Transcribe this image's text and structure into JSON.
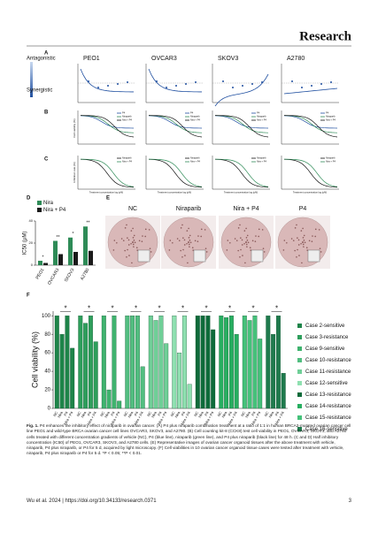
{
  "header": {
    "journal": "Research"
  },
  "figure": {
    "panel_labels": [
      "A",
      "B",
      "C",
      "D",
      "E",
      "F"
    ],
    "panel_a": {
      "legend_top": "Antagonistic",
      "legend_bottom": "Synergistic",
      "cell_lines": [
        "PEO1",
        "OVCAR3",
        "SKOV3",
        "A2780"
      ]
    },
    "panel_b": {
      "y_label": "Cell viability (%)",
      "legend": [
        "P4",
        "Niraparib",
        "Nira + P4"
      ]
    },
    "panel_c": {
      "y_label": "Inhibition rate (%)",
      "x_label": "Treatment concentration log (μM)",
      "legend": [
        "Niraparib",
        "Nira + P4"
      ]
    },
    "panel_e": {
      "labels": [
        "NC",
        "Niraparib",
        "Nira + P4",
        "P4"
      ]
    }
  },
  "chart_data": [
    {
      "type": "bar",
      "y_label": "IC50 (μM)",
      "categories": [
        "PEO1",
        "OVCAR3",
        "SKOV3",
        "A2780"
      ],
      "series": [
        {
          "name": "Nira",
          "color": "#2e8b57",
          "values": [
            4,
            22,
            25,
            35
          ]
        },
        {
          "name": "Nira + P4",
          "color": "#1a1a1a",
          "values": [
            2,
            10,
            12,
            13
          ]
        }
      ],
      "annotations": [
        "*",
        "**",
        "*",
        "**"
      ],
      "ylim": [
        0,
        40
      ],
      "yticks": [
        0,
        20,
        40
      ]
    },
    {
      "type": "bar",
      "y_label": "Cell viability (%)",
      "categories": [
        "NC",
        "Nira",
        "P4",
        "Nira + P4"
      ],
      "series": [
        {
          "name": "Case 2-sensitive",
          "color": "#1e8449",
          "values": [
            100,
            80,
            100,
            65
          ]
        },
        {
          "name": "Case 3-resistance",
          "color": "#2e9e5b",
          "values": [
            100,
            92,
            100,
            72
          ]
        },
        {
          "name": "Case 9-sensitive",
          "color": "#3fb36e",
          "values": [
            100,
            20,
            100,
            8
          ]
        },
        {
          "name": "Case 10-resistance",
          "color": "#52be80",
          "values": [
            100,
            100,
            100,
            45
          ]
        },
        {
          "name": "Case 11-resistance",
          "color": "#6fcf97",
          "values": [
            100,
            95,
            100,
            70
          ]
        },
        {
          "name": "Case 12-sensitive",
          "color": "#8fe0b0",
          "values": [
            100,
            60,
            100,
            26
          ]
        },
        {
          "name": "Case 13-resistance",
          "color": "#0e6b3a",
          "values": [
            100,
            100,
            100,
            85
          ]
        },
        {
          "name": "Case 14-resistance",
          "color": "#27ae60",
          "values": [
            100,
            98,
            100,
            80
          ]
        },
        {
          "name": "Case 15-resistance",
          "color": "#45c17a",
          "values": [
            100,
            95,
            100,
            75
          ]
        },
        {
          "name": "Case 16-sensitive",
          "color": "#1f7a4d",
          "values": [
            100,
            80,
            100,
            38
          ]
        }
      ],
      "annotations": [
        "*",
        "*",
        "*",
        "*",
        "*",
        "*",
        "*",
        "*",
        "*",
        "*"
      ],
      "ylim": [
        0,
        105
      ],
      "yticks": [
        0,
        20,
        40,
        60,
        80,
        100
      ]
    }
  ],
  "caption": {
    "label": "Fig. 1.",
    "text": "P4 enhances the inhibitory effect of niraparib in ovarian cancer. (A) P4 plus niraparib combination treatment at a ratio of 1:1 in human BRCA2-mutated ovarian cancer cell line PEO1 and wild-type BRCA ovarian cancer cell lines OVCAR3, SKOV3, and A2780. (B) Cell counting kit-8 (CCK8) test cell viability in PEO1, OVCAR3, SKOV3, and A2780 cells treated with different concentration gradients of vehicle (NC), P4 (blue line), niraparib (green line), and P4 plus niraparib (black line) for 48 h. (C and D) Half inhibitory concentration (IC50) of PEO1, OVCAR3, SKOV3, and A2780 cells. (E) Representative images of ovarian cancer organoid tissues after the above treatment with vehicle, niraparib, P4 plus niraparib, or P4 for 5 d, acquired by light microscopy. (F) Cell viabilities in 10 ovarian cancer organoid tissue cases were tested after treatment with vehicle, niraparib, P4 plus niraparib or P4 for 5 d. *P < 0.05; **P < 0.01."
  },
  "footer": {
    "citation": "Wu et al. 2024 | https://doi.org/10.34133/research.0371",
    "page": "3"
  }
}
